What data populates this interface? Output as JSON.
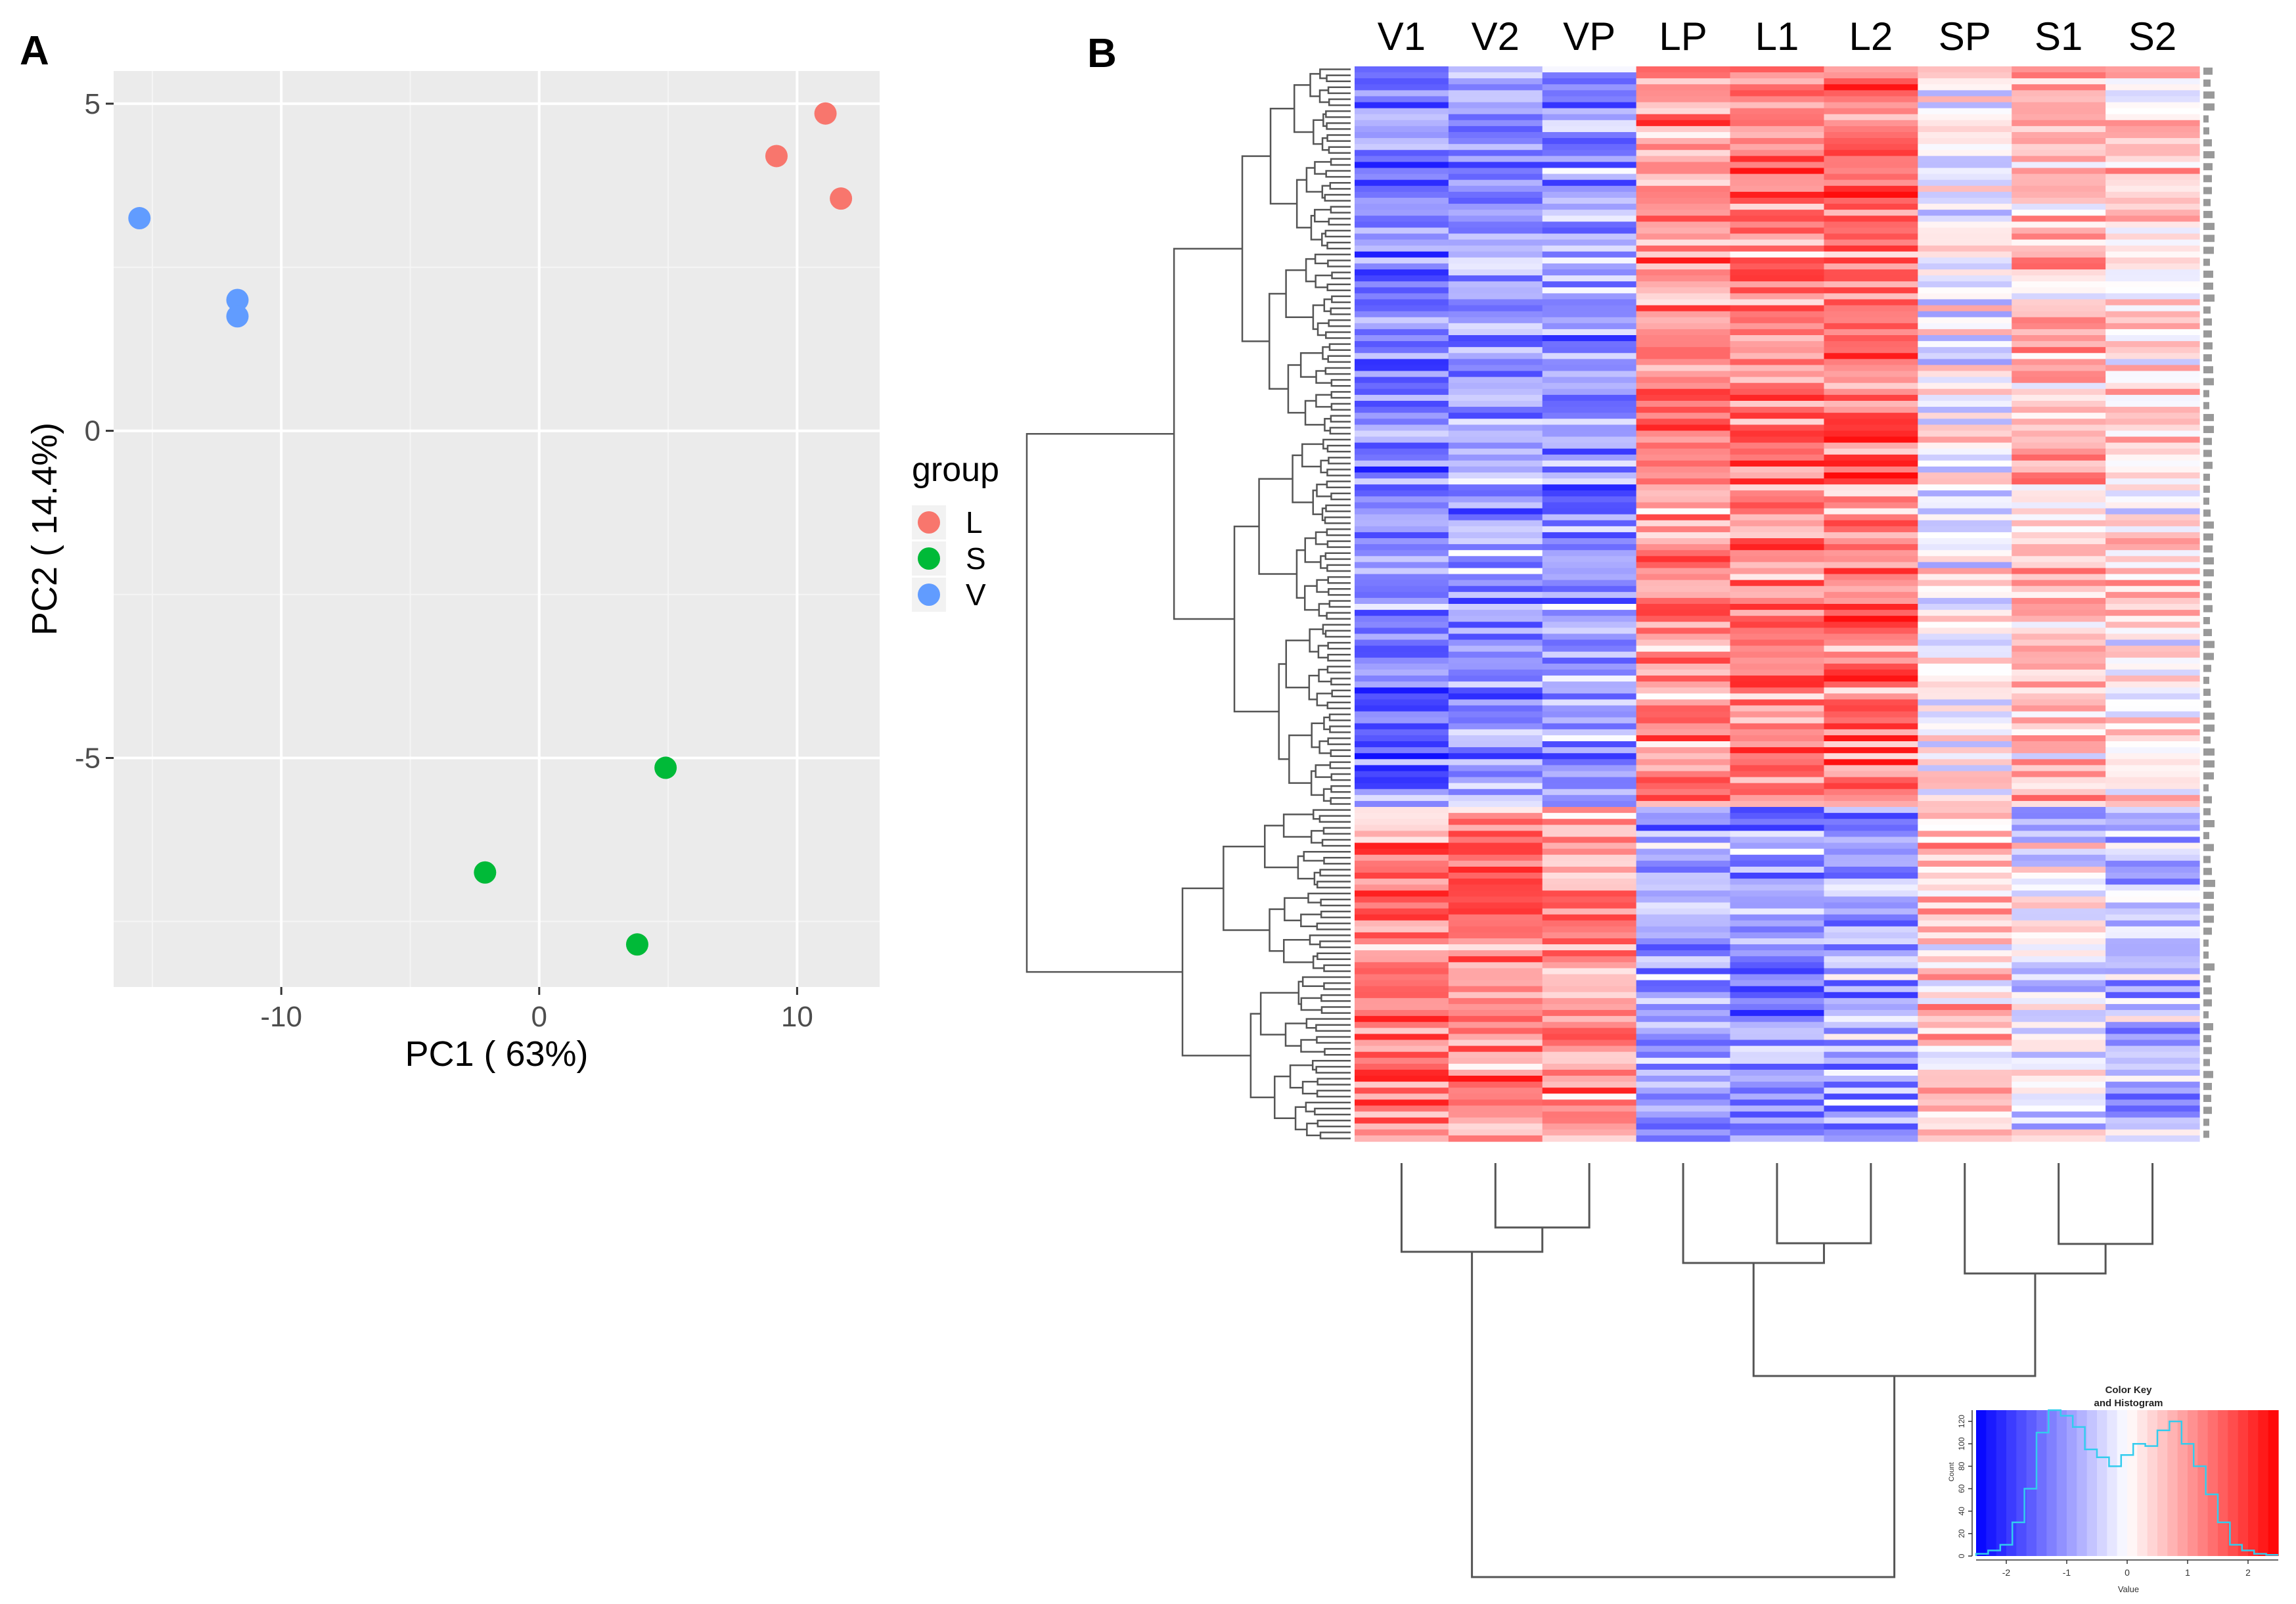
{
  "panels": {
    "a_label": "A",
    "b_label": "B"
  },
  "chart_data": [
    {
      "type": "scatter",
      "title": "",
      "xlabel": "PC1 ( 63%)",
      "ylabel": "PC2 ( 14.4%)",
      "xlim": [
        -16.5,
        13.2
      ],
      "ylim": [
        -8.5,
        5.5
      ],
      "xticks": [
        -10,
        0,
        10
      ],
      "xtick_labels": [
        "-10",
        "0",
        "10"
      ],
      "yticks": [
        -5,
        0,
        5
      ],
      "ytick_labels": [
        "-5",
        "0",
        "5"
      ],
      "grid": true,
      "legend": {
        "title": "group",
        "position": "right"
      },
      "series": [
        {
          "name": "L",
          "color": "#F8766D",
          "points": [
            [
              9.2,
              4.2
            ],
            [
              11.1,
              4.85
            ],
            [
              11.7,
              3.55
            ]
          ]
        },
        {
          "name": "S",
          "color": "#00BA38",
          "points": [
            [
              4.9,
              -5.15
            ],
            [
              -2.1,
              -6.75
            ],
            [
              3.8,
              -7.85
            ]
          ]
        },
        {
          "name": "V",
          "color": "#619CFF",
          "points": [
            [
              -15.5,
              3.25
            ],
            [
              -11.7,
              2.0
            ],
            [
              -11.7,
              1.75
            ]
          ]
        }
      ]
    },
    {
      "type": "heatmap",
      "title": "",
      "columns": [
        "V1",
        "V2",
        "VP",
        "LP",
        "L1",
        "L2",
        "SP",
        "S1",
        "S2"
      ],
      "n_rows": 180,
      "value_range": [
        -2.5,
        2.5
      ],
      "colors": {
        "low": "#0000FF",
        "mid": "#FFFFFF",
        "high": "#FF0000"
      },
      "row_blocks": [
        {
          "rows": [
            0,
            124
          ],
          "means": [
            -1.3,
            -1.0,
            -1.0,
            1.1,
            1.2,
            1.3,
            -0.1,
            0.6,
            0.3
          ]
        },
        {
          "rows": [
            124,
            180
          ],
          "means": [
            1.3,
            1.2,
            1.1,
            -1.0,
            -1.1,
            -0.9,
            0.4,
            -0.2,
            -0.6
          ]
        }
      ],
      "column_dendrogram_order": [
        "V1",
        "V2",
        "VP",
        "LP",
        "L1",
        "L2",
        "SP",
        "S1",
        "S2"
      ],
      "color_key": {
        "title": "Color Key\nand Histogram",
        "xlabel": "Value",
        "ylabel": "Count",
        "xticks": [
          -2,
          -1,
          0,
          1,
          2
        ],
        "xtick_labels": [
          "-2",
          "-1",
          "0",
          "1",
          "2"
        ],
        "yticks": [
          0,
          20,
          40,
          60,
          80,
          100,
          120
        ],
        "ytick_labels": [
          "0",
          "20",
          "40",
          "60",
          "80",
          "100",
          "120"
        ],
        "xlim": [
          -2.5,
          2.5
        ],
        "ylim": [
          0,
          130
        ],
        "hist_bins": [
          -2.5,
          -2.3,
          -2.1,
          -1.9,
          -1.7,
          -1.5,
          -1.3,
          -1.1,
          -0.9,
          -0.7,
          -0.5,
          -0.3,
          -0.1,
          0.1,
          0.3,
          0.5,
          0.7,
          0.9,
          1.1,
          1.3,
          1.5,
          1.7,
          1.9,
          2.1,
          2.3,
          2.5
        ],
        "hist_counts": [
          2,
          5,
          10,
          30,
          60,
          110,
          130,
          125,
          115,
          95,
          88,
          80,
          90,
          100,
          98,
          112,
          120,
          100,
          80,
          55,
          30,
          10,
          5,
          2,
          1
        ]
      }
    }
  ]
}
